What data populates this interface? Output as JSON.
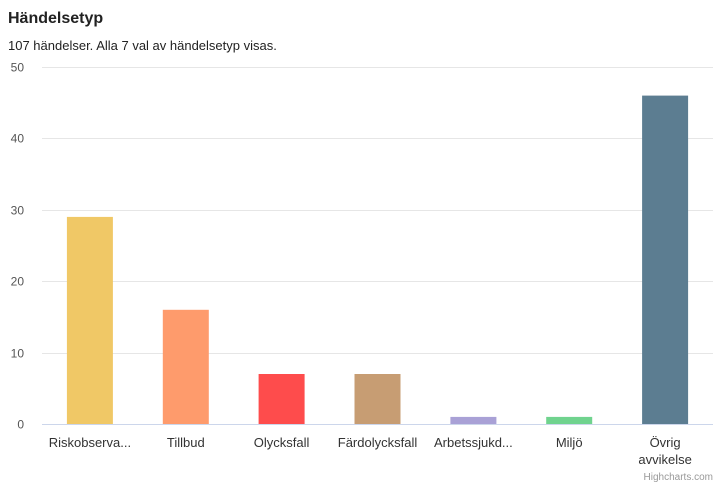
{
  "chart_data": {
    "type": "bar",
    "title": "Händelsetyp",
    "subtitle": "107 händelser. Alla 7 val av händelsetyp visas.",
    "categories": [
      [
        "Riskobserva..."
      ],
      [
        "Tillbud"
      ],
      [
        "Olycksfall"
      ],
      [
        "Färdolycksfall"
      ],
      [
        "Arbetssjukd..."
      ],
      [
        "Miljö"
      ],
      [
        "Övrig",
        "avvikelse"
      ]
    ],
    "values": [
      29,
      16,
      7,
      7,
      1,
      1,
      46
    ],
    "colors": [
      "#f0c866",
      "#fe9b6c",
      "#fe4c4c",
      "#c79d73",
      "#a9a1d6",
      "#70d38e",
      "#5c7d91"
    ],
    "yticks": [
      "0",
      "10",
      "20",
      "30",
      "40",
      "50"
    ],
    "ylim": [
      0,
      50
    ],
    "grid": true,
    "legend": "none",
    "credits": "Highcharts.com"
  }
}
